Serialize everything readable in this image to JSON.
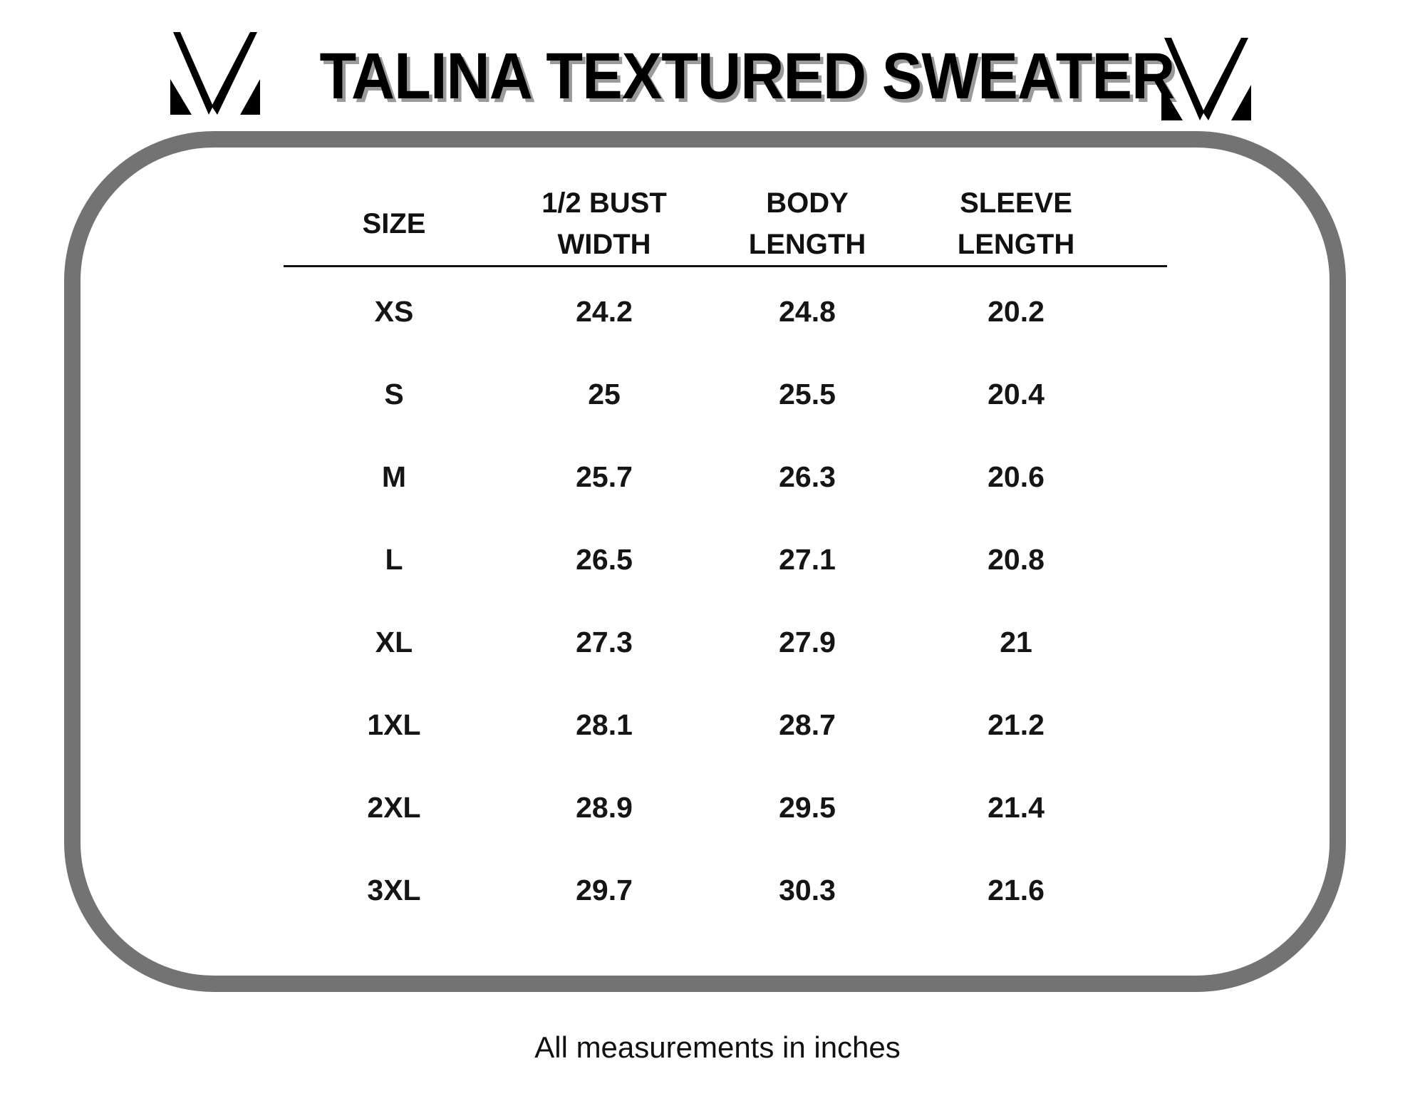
{
  "title": "TALINA TEXTURED SWEATER",
  "logo_icon": "brand-v-monogram",
  "colors": {
    "border": "#737373",
    "text": "#111111",
    "title_shadow": "#9a9a9a"
  },
  "table": {
    "headers": [
      "SIZE",
      "1/2 BUST\nWIDTH",
      "BODY\nLENGTH",
      "SLEEVE\nLENGTH"
    ],
    "rows": [
      [
        "XS",
        "24.2",
        "24.8",
        "20.2"
      ],
      [
        "S",
        "25",
        "25.5",
        "20.4"
      ],
      [
        "M",
        "25.7",
        "26.3",
        "20.6"
      ],
      [
        "L",
        "26.5",
        "27.1",
        "20.8"
      ],
      [
        "XL",
        "27.3",
        "27.9",
        "21"
      ],
      [
        "1XL",
        "28.1",
        "28.7",
        "21.2"
      ],
      [
        "2XL",
        "28.9",
        "29.5",
        "21.4"
      ],
      [
        "3XL",
        "29.7",
        "30.3",
        "21.6"
      ]
    ]
  },
  "footer": "All measurements in inches"
}
